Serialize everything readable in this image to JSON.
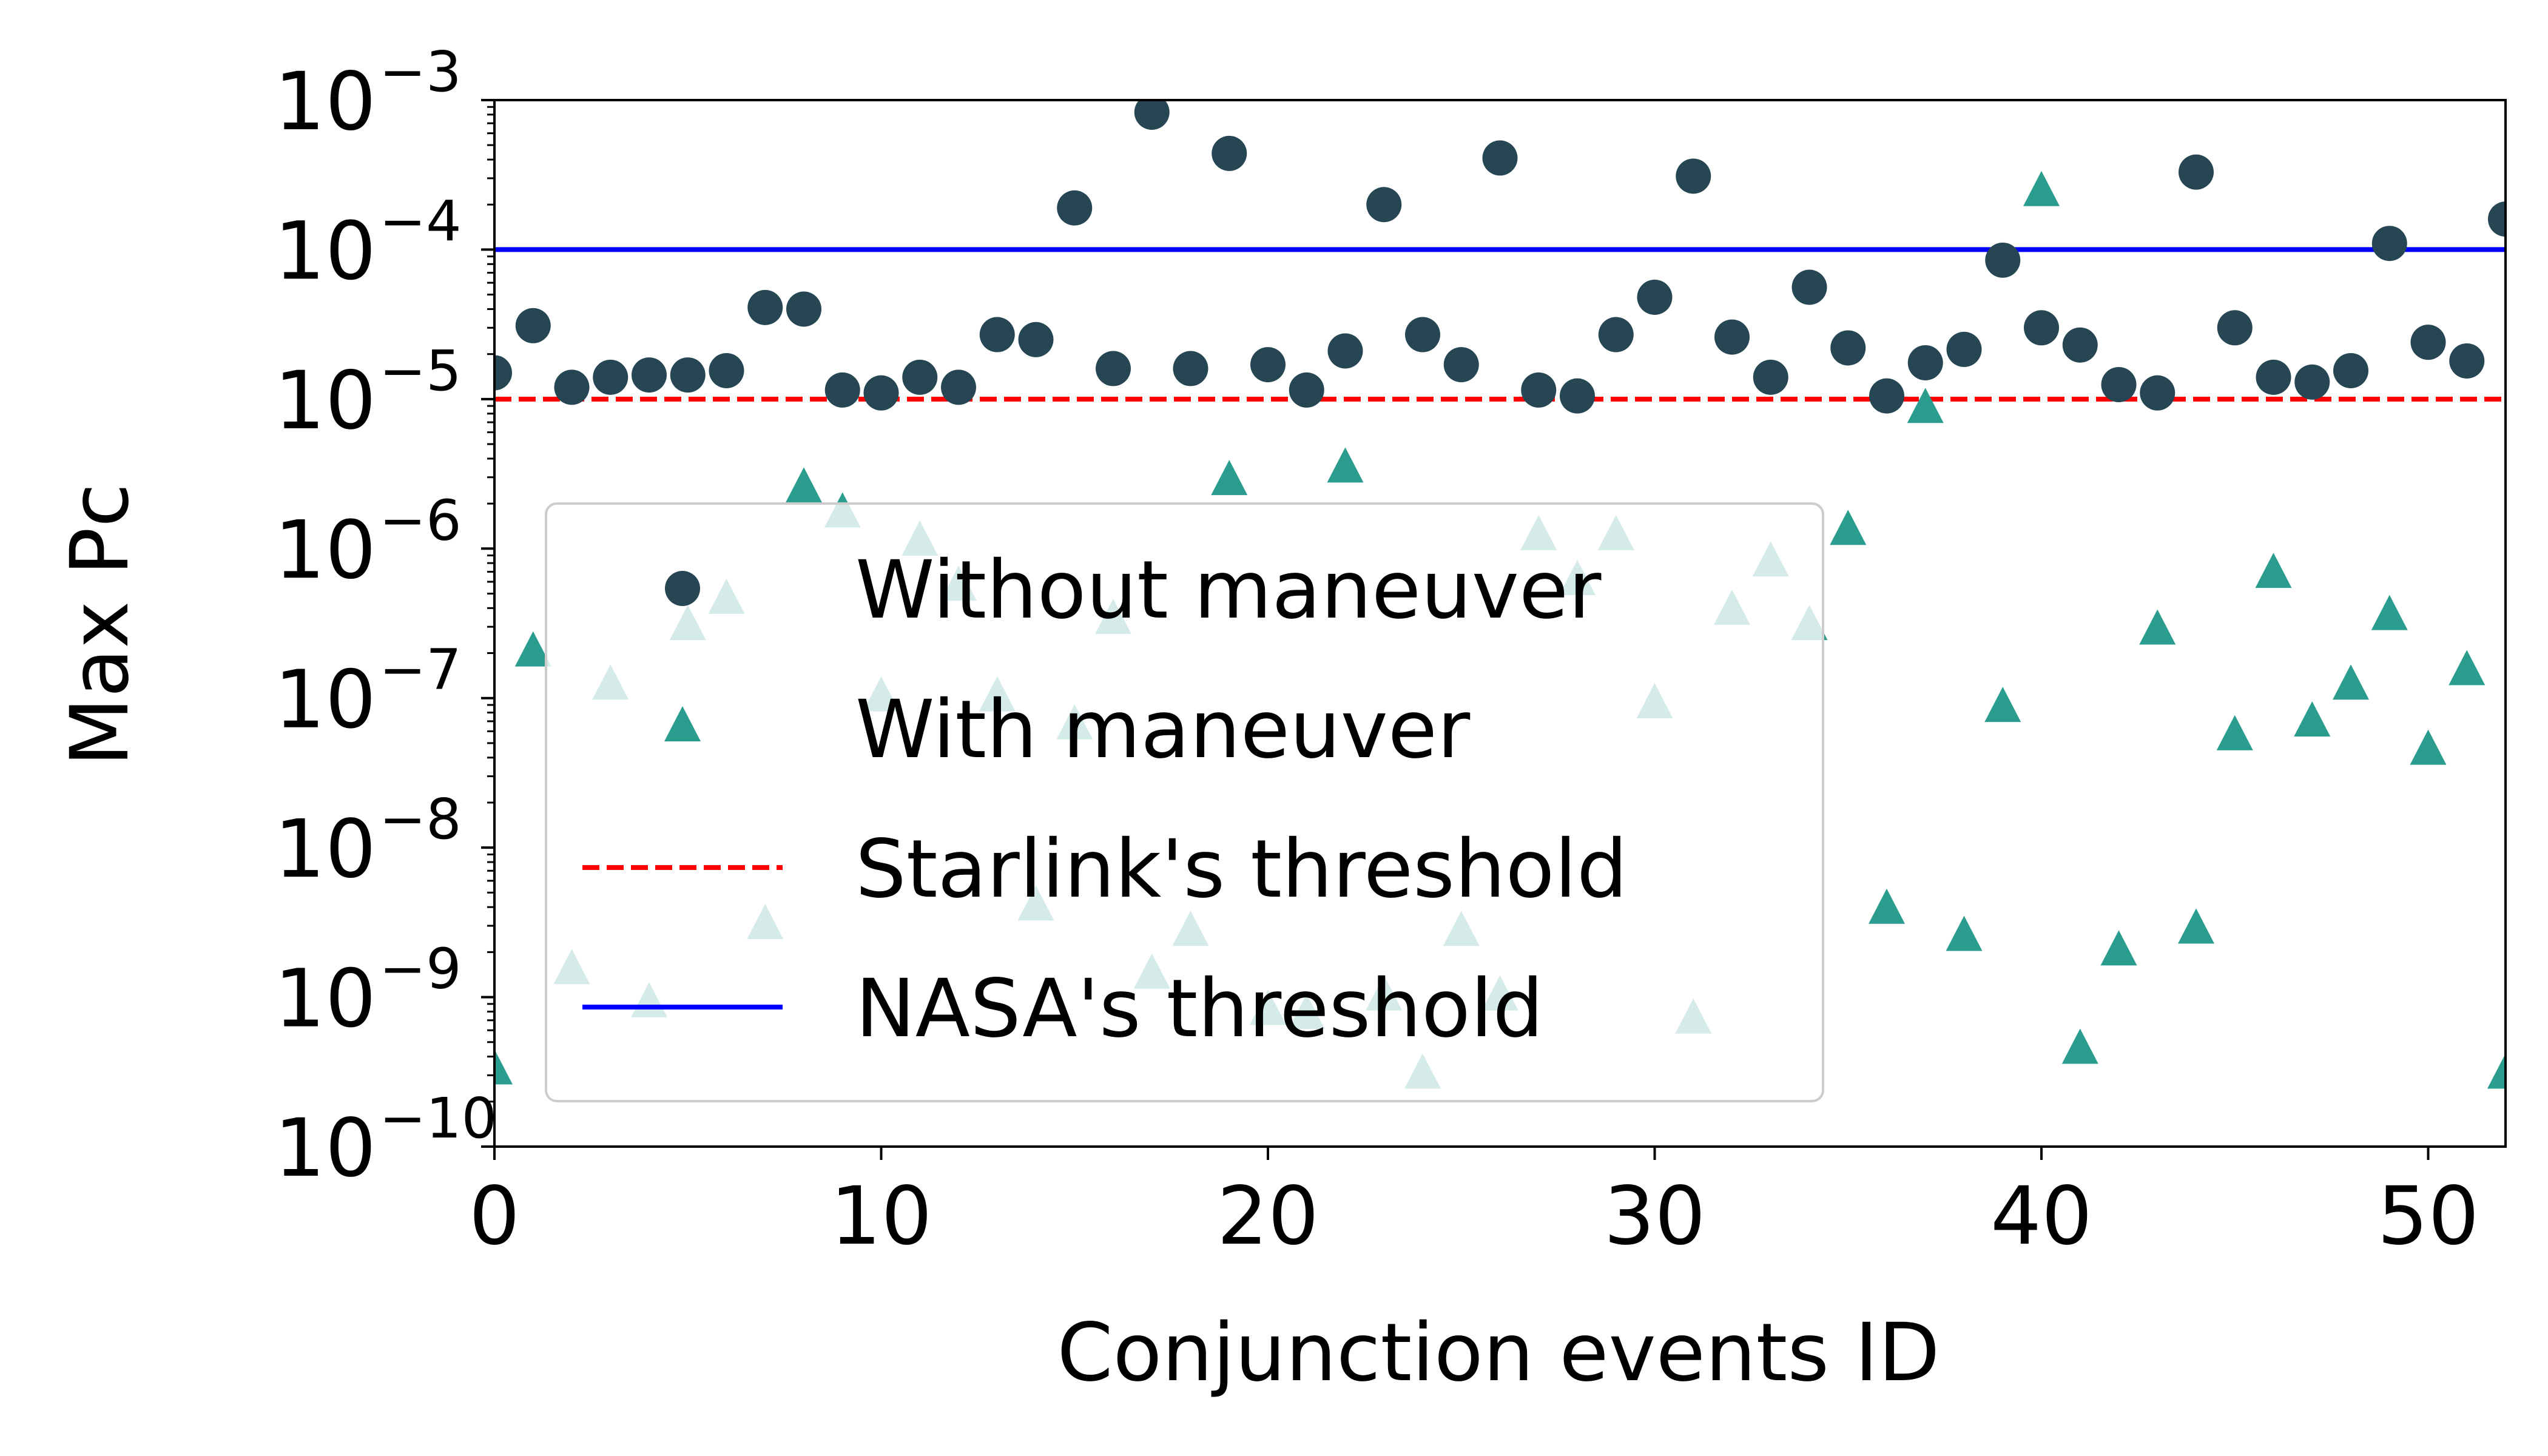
{
  "chart_data": {
    "type": "scatter",
    "title": "",
    "xlabel": "Conjunction events ID",
    "ylabel": "Max Pc",
    "yscale": "log",
    "xlim": [
      0,
      52
    ],
    "ylim": [
      1e-10,
      0.001
    ],
    "x_ticks": [
      0,
      10,
      20,
      30,
      40,
      50
    ],
    "x_tick_labels": [
      "0",
      "10",
      "20",
      "30",
      "40",
      "50"
    ],
    "y_tick_exponents": [
      -10,
      -9,
      -8,
      -7,
      -6,
      -5,
      -4,
      -3
    ],
    "y_tick_labels": [
      {
        "base": "10",
        "exp": "−10"
      },
      {
        "base": "10",
        "exp": "−9"
      },
      {
        "base": "10",
        "exp": "−8"
      },
      {
        "base": "10",
        "exp": "−7"
      },
      {
        "base": "10",
        "exp": "−6"
      },
      {
        "base": "10",
        "exp": "−5"
      },
      {
        "base": "10",
        "exp": "−4"
      },
      {
        "base": "10",
        "exp": "−3"
      }
    ],
    "grid": false,
    "legend_position": "lower-left",
    "series": [
      {
        "name": "Without maneuver",
        "marker": "circle",
        "color": "#264653",
        "x": [
          0,
          1,
          2,
          3,
          4,
          5,
          6,
          7,
          8,
          9,
          10,
          11,
          12,
          13,
          14,
          15,
          16,
          17,
          18,
          19,
          20,
          21,
          22,
          23,
          24,
          25,
          26,
          27,
          28,
          29,
          30,
          31,
          32,
          33,
          34,
          35,
          36,
          37,
          38,
          39,
          40,
          41,
          42,
          43,
          44,
          45,
          46,
          47,
          48,
          49,
          50,
          51,
          52
        ],
        "y": [
          1.5e-05,
          3.1e-05,
          1.2e-05,
          1.4e-05,
          1.45e-05,
          1.45e-05,
          1.55e-05,
          4.1e-05,
          4e-05,
          1.15e-05,
          1.1e-05,
          1.4e-05,
          1.2e-05,
          2.7e-05,
          2.5e-05,
          0.00019,
          1.6e-05,
          0.00083,
          1.6e-05,
          0.00044,
          1.7e-05,
          1.15e-05,
          2.1e-05,
          0.0002,
          2.7e-05,
          1.7e-05,
          0.00041,
          1.15e-05,
          1.05e-05,
          2.7e-05,
          4.8e-05,
          0.00031,
          2.6e-05,
          1.4e-05,
          5.6e-05,
          2.2e-05,
          1.05e-05,
          1.75e-05,
          2.15e-05,
          8.5e-05,
          3e-05,
          2.3e-05,
          1.25e-05,
          1.1e-05,
          0.00033,
          3e-05,
          1.4e-05,
          1.3e-05,
          1.55e-05,
          0.00011,
          2.4e-05,
          1.8e-05,
          0.00016
        ]
      },
      {
        "name": "With maneuver",
        "marker": "triangle",
        "color": "#2a9d8f",
        "x": [
          0,
          1,
          2,
          3,
          4,
          5,
          6,
          7,
          8,
          9,
          10,
          11,
          12,
          13,
          14,
          15,
          16,
          17,
          18,
          19,
          20,
          21,
          22,
          23,
          24,
          25,
          26,
          27,
          28,
          29,
          30,
          31,
          32,
          33,
          34,
          35,
          36,
          37,
          38,
          39,
          40,
          41,
          42,
          43,
          44,
          45,
          46,
          47,
          48,
          49,
          50,
          51,
          52
        ],
        "y": [
          3.2e-10,
          2e-07,
          1.5e-09,
          1.2e-07,
          9e-10,
          3e-07,
          4.5e-07,
          3e-09,
          2.5e-06,
          1.7e-06,
          1e-07,
          1.1e-06,
          5.5e-07,
          1e-07,
          4e-09,
          6.5e-08,
          3.3e-07,
          1.4e-09,
          2.7e-09,
          2.8e-06,
          8e-10,
          7.5e-10,
          3.4e-06,
          1e-09,
          3e-10,
          2.7e-09,
          1e-09,
          1.2e-06,
          6e-07,
          1.2e-06,
          9e-08,
          7e-10,
          3.8e-07,
          8e-07,
          3e-07,
          1.3e-06,
          3.8e-09,
          8.5e-06,
          2.5e-09,
          8.5e-08,
          0.00024,
          4.4e-10,
          2e-09,
          2.8e-07,
          2.8e-09,
          5.5e-08,
          6.7e-07,
          6.8e-08,
          1.2e-07,
          3.5e-07,
          4.4e-08,
          1.5e-07,
          3e-10
        ]
      }
    ],
    "reference_lines": [
      {
        "name": "Starlink's threshold",
        "y": 1e-05,
        "style": "dashed",
        "color": "#ff0000"
      },
      {
        "name": "NASA's threshold",
        "y": 0.0001,
        "style": "solid",
        "color": "#0000ff"
      }
    ]
  }
}
